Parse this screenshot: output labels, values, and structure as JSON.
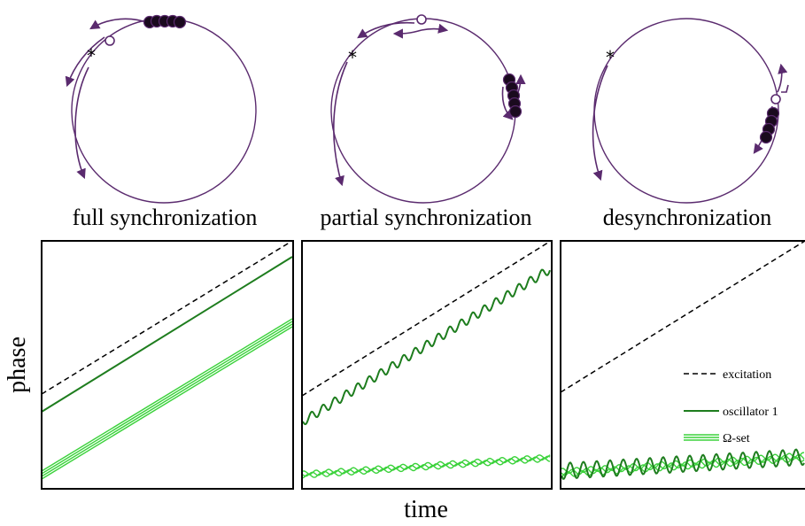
{
  "panels": [
    {
      "caption": "full synchronization"
    },
    {
      "caption": "partial synchronization"
    },
    {
      "caption": "desynchronization"
    }
  ],
  "axes": {
    "ylabel": "phase",
    "xlabel": "time"
  },
  "legend": {
    "excitation": "excitation",
    "oscillator": "oscillator 1",
    "omega_set": "Ω-set"
  },
  "colors": {
    "ring": "#5a2a6e",
    "oscillator_fill": "#1a0a1e",
    "dark_green": "#1e7d1e",
    "light_green": "#3bd23b",
    "excitation": "#000000"
  },
  "icons": {
    "excitation_marker": "asterisk",
    "oscillator_marker": "open-circle",
    "ensemble_marker": "filled-circle"
  }
}
